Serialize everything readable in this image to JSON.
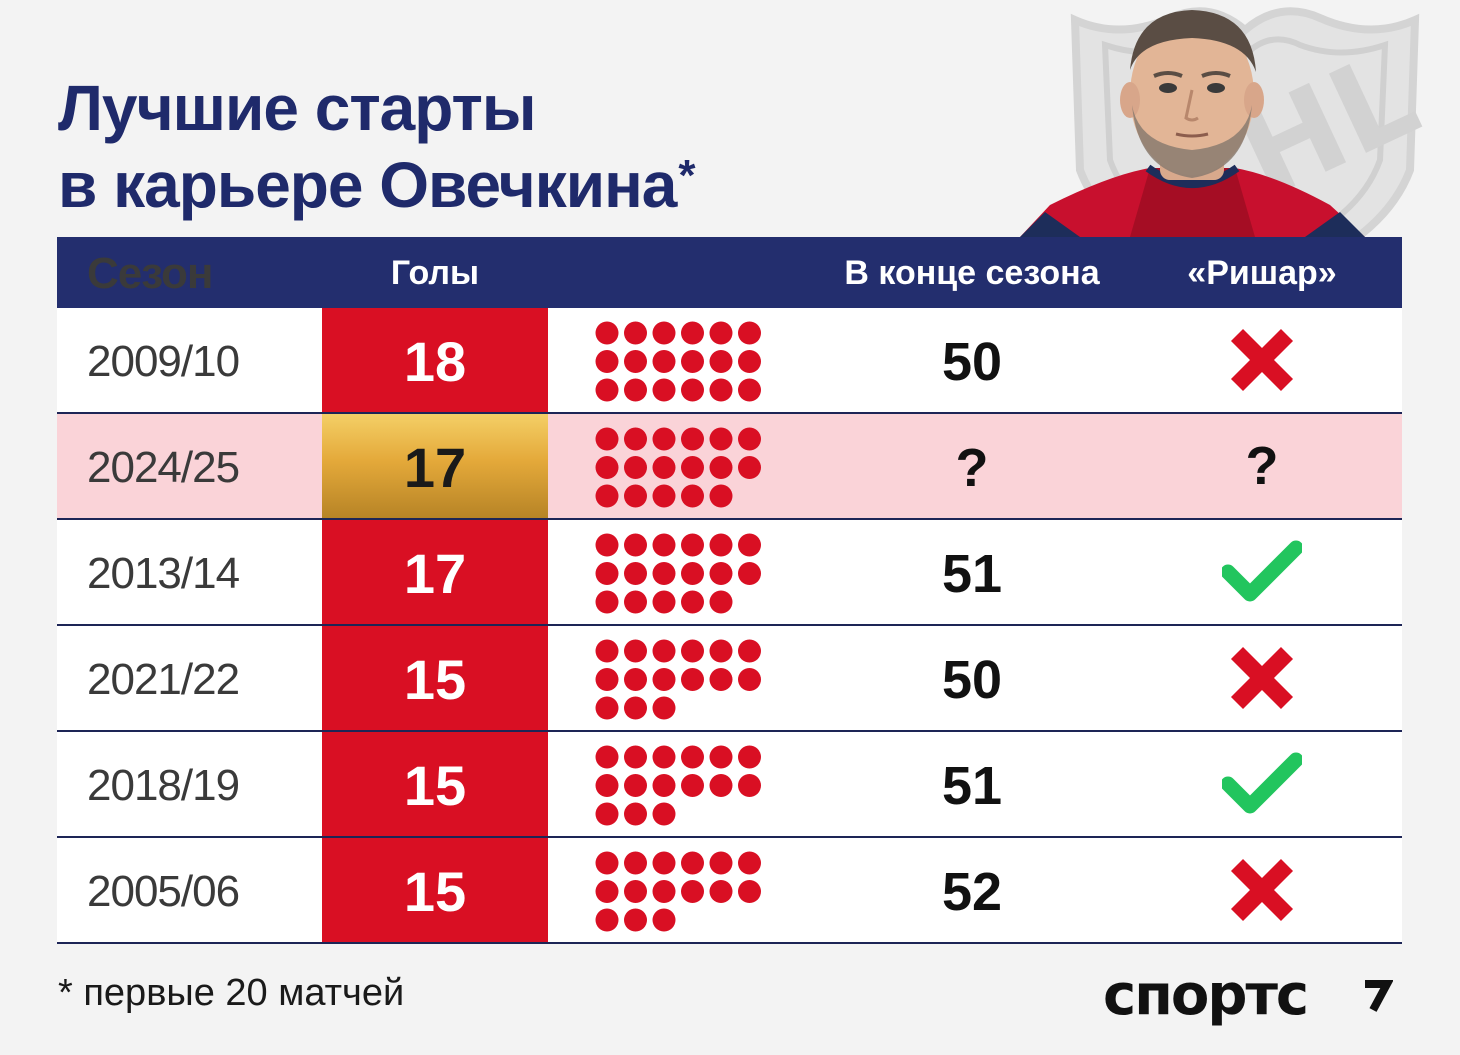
{
  "title": {
    "line1": "Лучшие старты",
    "line2": "в карьере Овечкина",
    "asterisk": "*"
  },
  "header": {
    "season": "Сезон",
    "goals": "Голы",
    "end_of_season": "В конце сезона",
    "richard": "«Ришар»"
  },
  "colors": {
    "navy": "#232e6e",
    "red": "#d90f23",
    "gold": "#e4a93a",
    "highlight_row": "#fad3d8",
    "check_green": "#22c55e"
  },
  "chart_data": {
    "type": "table",
    "columns": [
      "Сезон",
      "Голы",
      "В конце сезона",
      "«Ришар»"
    ],
    "rows": [
      {
        "season": "2009/10",
        "goals": "18",
        "goals_count": 18,
        "end": "50",
        "richard": "cross",
        "richard_text": ""
      },
      {
        "season": "2024/25",
        "goals": "17",
        "goals_count": 17,
        "end": "?",
        "richard": "question",
        "richard_text": "?",
        "highlight": true
      },
      {
        "season": "2013/14",
        "goals": "17",
        "goals_count": 17,
        "end": "51",
        "richard": "check",
        "richard_text": ""
      },
      {
        "season": "2021/22",
        "goals": "15",
        "goals_count": 15,
        "end": "50",
        "richard": "cross",
        "richard_text": ""
      },
      {
        "season": "2018/19",
        "goals": "15",
        "goals_count": 15,
        "end": "51",
        "richard": "check",
        "richard_text": ""
      },
      {
        "season": "2005/06",
        "goals": "15",
        "goals_count": 15,
        "end": "52",
        "richard": "cross",
        "richard_text": ""
      }
    ]
  },
  "footnote": "* первые 20 матчей",
  "logo": {
    "text": "спортс",
    "icon": "sports-logo-icon"
  },
  "images": {
    "player": "player-photo",
    "shield": "nhl-shield-watermark"
  }
}
